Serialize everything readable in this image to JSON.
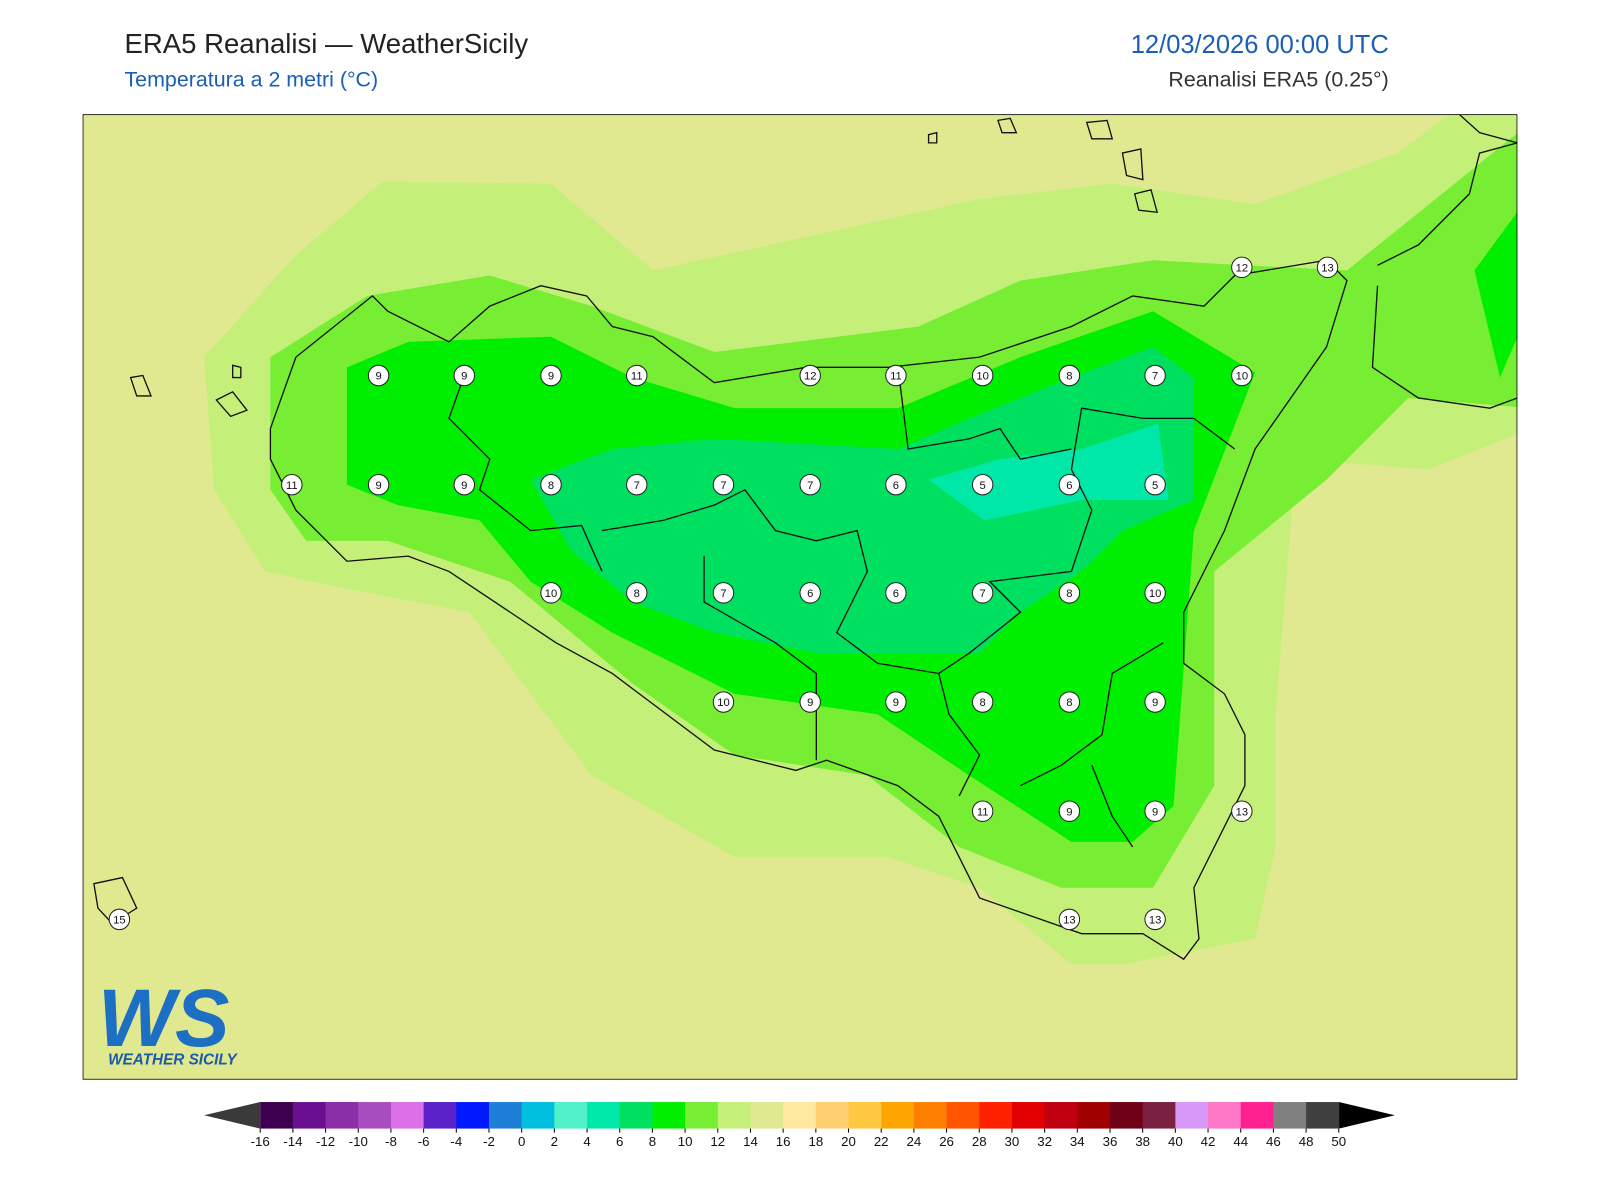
{
  "header": {
    "title": "ERA5 Reanalisi — WeatherSicily",
    "subtitle": "Temperatura a 2 metri (°C)",
    "date": "12/03/2026 00:00 UTC",
    "source": "Reanalisi ERA5 (0.25°)"
  },
  "logo": {
    "mark": "WS",
    "text": "WEATHER SICILY"
  },
  "stations": [
    9,
    9,
    9,
    11,
    12,
    11,
    10,
    8,
    7,
    10,
    11,
    9,
    9,
    8,
    7,
    7,
    7,
    6,
    5,
    6,
    5,
    10,
    8,
    7,
    6,
    6,
    7,
    8,
    10,
    10,
    9,
    9,
    8,
    8,
    9,
    11,
    9,
    9,
    13,
    13,
    13,
    15,
    12,
    13
  ],
  "colorbar": {
    "ticks": [
      -16,
      -14,
      -12,
      -10,
      -8,
      -6,
      -4,
      -2,
      0,
      2,
      4,
      6,
      8,
      10,
      12,
      14,
      16,
      18,
      20,
      22,
      24,
      26,
      28,
      30,
      32,
      34,
      36,
      38,
      40,
      42,
      44,
      46,
      48,
      50
    ],
    "colors": [
      "#3d0050",
      "#6a0f8f",
      "#8a2fa8",
      "#a84dc0",
      "#dd6fe8",
      "#5b22c9",
      "#0019ff",
      "#1e7fd8",
      "#00c0e0",
      "#50f0c8",
      "#00e8a8",
      "#00e060",
      "#00ee00",
      "#77ee33",
      "#c4f07a",
      "#e0e890",
      "#ffe8a0",
      "#ffd070",
      "#ffc840",
      "#ffa500",
      "#ff8000",
      "#ff5500",
      "#ff2000",
      "#e00000",
      "#c00010",
      "#a00000",
      "#700018",
      "#7a2040",
      "#d898f8",
      "#ff78c8",
      "#ff2090",
      "#808080",
      "#404040"
    ],
    "under": "#3a3a3a",
    "over": "#000000"
  }
}
